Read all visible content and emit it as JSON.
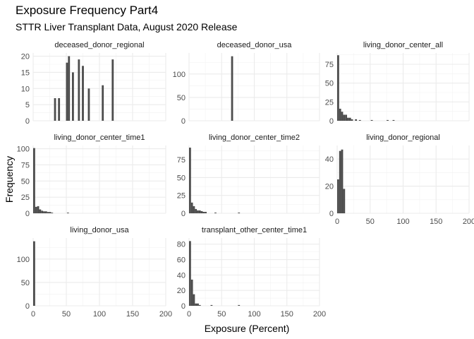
{
  "title": "Exposure Frequency Part4",
  "subtitle": "STTR Liver Transplant Data, August 2020 Release",
  "chart_data": {
    "type": "bar",
    "title": "Exposure Frequency Part4",
    "subtitle": "STTR Liver Transplant Data, August 2020 Release",
    "xlabel": "Exposure (Percent)",
    "ylabel": "Frequency",
    "xlim": [
      0,
      200
    ],
    "x_ticks": [
      0,
      50,
      100,
      150,
      200
    ],
    "grid": true,
    "bin_width": 3,
    "panels": [
      {
        "name": "deceased_donor_regional",
        "ylim": [
          0,
          21
        ],
        "y_ticks": [
          0,
          5,
          10,
          15,
          20
        ],
        "x": [
          33,
          39,
          51,
          54,
          60,
          69,
          75,
          84,
          105,
          120
        ],
        "values": [
          7,
          7,
          18,
          20,
          15,
          19,
          17,
          10,
          11,
          19
        ]
      },
      {
        "name": "deceased_donor_usa",
        "ylim": [
          0,
          145
        ],
        "y_ticks": [
          0,
          50,
          100
        ],
        "x": [
          66
        ],
        "values": [
          138
        ]
      },
      {
        "name": "living_donor_center_all",
        "ylim": [
          0,
          90
        ],
        "y_ticks": [
          0,
          25,
          50,
          75
        ],
        "x": [
          1.5,
          4.5,
          7.5,
          10.5,
          13.5,
          16.5,
          19.5,
          22.5,
          28.5,
          34.5,
          52.5,
          76.5,
          85.5
        ],
        "values": [
          87,
          16,
          12,
          8,
          8,
          4,
          4,
          2,
          2,
          1,
          1,
          1,
          1
        ]
      },
      {
        "name": "living_donor_center_time1",
        "ylim": [
          0,
          105
        ],
        "y_ticks": [
          0,
          25,
          50,
          75,
          100
        ],
        "x": [
          1.5,
          4.5,
          7.5,
          10.5,
          13.5,
          16.5,
          19.5,
          22.5,
          25.5,
          28.5,
          52.5
        ],
        "values": [
          101,
          10,
          11,
          6,
          4,
          3,
          3,
          2,
          2,
          1,
          1
        ]
      },
      {
        "name": "living_donor_center_time2",
        "ylim": [
          0,
          95
        ],
        "y_ticks": [
          0,
          25,
          50,
          75
        ],
        "x": [
          1.5,
          4.5,
          7.5,
          10.5,
          13.5,
          16.5,
          19.5,
          22.5,
          25.5,
          40.5,
          76.5
        ],
        "values": [
          92,
          15,
          10,
          6,
          4,
          4,
          3,
          2,
          2,
          1,
          1
        ]
      },
      {
        "name": "living_donor_regional",
        "ylim": [
          0,
          50
        ],
        "y_ticks": [
          0,
          20,
          40
        ],
        "x": [
          1.5,
          4.5,
          7.5,
          10.5
        ],
        "values": [
          25,
          46,
          47,
          18
        ]
      },
      {
        "name": "living_donor_usa",
        "ylim": [
          0,
          145
        ],
        "y_ticks": [
          0,
          50,
          100
        ],
        "x": [
          1.5
        ],
        "values": [
          138
        ]
      },
      {
        "name": "transplant_other_center_time1",
        "ylim": [
          0,
          88
        ],
        "y_ticks": [
          0,
          20,
          40,
          60,
          80
        ],
        "x": [
          1.5,
          4.5,
          7.5,
          10.5,
          13.5,
          16.5,
          34.5,
          76.5
        ],
        "values": [
          84,
          34,
          15,
          3,
          3,
          1,
          1,
          1
        ]
      }
    ]
  }
}
